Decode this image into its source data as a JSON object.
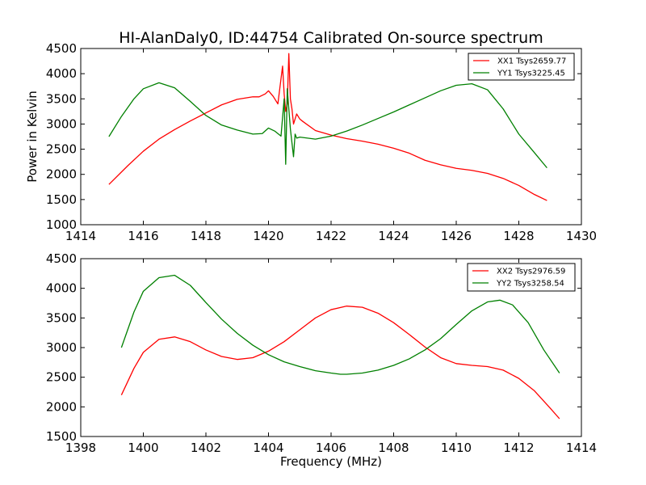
{
  "chart_data": [
    {
      "type": "line",
      "title": "HI-AlanDaly0, ID:44754 Calibrated On-source spectrum",
      "xlabel": "",
      "ylabel": "Power in Kelvin",
      "xlim": [
        1414,
        1430
      ],
      "ylim": [
        1000,
        4500
      ],
      "xticks": [
        1414,
        1416,
        1418,
        1420,
        1422,
        1424,
        1426,
        1428,
        1430
      ],
      "yticks": [
        1000,
        1500,
        2000,
        2500,
        3000,
        3500,
        4000,
        4500
      ],
      "grid": false,
      "legend_position": "top-right",
      "series": [
        {
          "name": "XX1 Tsys2659.77",
          "color": "#ff0000",
          "x": [
            1414.9,
            1415.5,
            1416.0,
            1416.5,
            1417.0,
            1417.5,
            1418.0,
            1418.5,
            1419.0,
            1419.5,
            1419.7,
            1419.9,
            1420.0,
            1420.15,
            1420.3,
            1420.45,
            1420.5,
            1420.55,
            1420.6,
            1420.65,
            1420.7,
            1420.75,
            1420.8,
            1420.9,
            1421.0,
            1421.1,
            1421.5,
            1422.0,
            1422.5,
            1423.0,
            1423.5,
            1424.0,
            1424.5,
            1425.0,
            1425.5,
            1426.0,
            1426.5,
            1427.0,
            1427.5,
            1428.0,
            1428.5,
            1428.9
          ],
          "y": [
            1800,
            2170,
            2460,
            2700,
            2890,
            3060,
            3220,
            3380,
            3490,
            3540,
            3540,
            3600,
            3660,
            3550,
            3400,
            4150,
            3600,
            3250,
            3400,
            4400,
            3500,
            3300,
            3000,
            3200,
            3100,
            3050,
            2870,
            2780,
            2710,
            2660,
            2600,
            2520,
            2420,
            2280,
            2190,
            2120,
            2080,
            2020,
            1920,
            1780,
            1600,
            1480
          ]
        },
        {
          "name": "YY1 Tsys3225.45",
          "color": "#008000",
          "x": [
            1414.9,
            1415.3,
            1415.7,
            1416.0,
            1416.5,
            1417.0,
            1417.5,
            1418.0,
            1418.5,
            1419.0,
            1419.5,
            1419.8,
            1420.0,
            1420.2,
            1420.4,
            1420.5,
            1420.55,
            1420.6,
            1420.7,
            1420.8,
            1420.85,
            1420.9,
            1421.0,
            1421.5,
            1422.0,
            1422.5,
            1423.0,
            1423.5,
            1424.0,
            1424.5,
            1425.0,
            1425.5,
            1426.0,
            1426.5,
            1427.0,
            1427.5,
            1428.0,
            1428.5,
            1428.9
          ],
          "y": [
            2750,
            3150,
            3500,
            3700,
            3820,
            3720,
            3450,
            3170,
            2980,
            2880,
            2800,
            2810,
            2920,
            2860,
            2760,
            3500,
            2200,
            3700,
            2900,
            2350,
            2800,
            2720,
            2740,
            2700,
            2760,
            2860,
            2980,
            3110,
            3240,
            3380,
            3520,
            3660,
            3770,
            3800,
            3680,
            3300,
            2800,
            2430,
            2130
          ]
        }
      ]
    },
    {
      "type": "line",
      "title": "",
      "xlabel": "Frequency (MHz)",
      "ylabel": "",
      "xlim": [
        1398,
        1414
      ],
      "ylim": [
        1500,
        4500
      ],
      "xticks": [
        1398,
        1400,
        1402,
        1404,
        1406,
        1408,
        1410,
        1412,
        1414
      ],
      "yticks": [
        1500,
        2000,
        2500,
        3000,
        3500,
        4000,
        4500
      ],
      "grid": false,
      "legend_position": "top-right",
      "series": [
        {
          "name": "XX2 Tsys2976.59",
          "color": "#ff0000",
          "x": [
            1399.3,
            1399.7,
            1400.0,
            1400.5,
            1401.0,
            1401.5,
            1402.0,
            1402.5,
            1403.0,
            1403.5,
            1404.0,
            1404.5,
            1405.0,
            1405.5,
            1406.0,
            1406.5,
            1407.0,
            1407.5,
            1408.0,
            1408.5,
            1409.0,
            1409.5,
            1410.0,
            1410.5,
            1411.0,
            1411.5,
            1412.0,
            1412.5,
            1413.0,
            1413.3
          ],
          "y": [
            2200,
            2650,
            2920,
            3140,
            3180,
            3100,
            2960,
            2850,
            2800,
            2830,
            2940,
            3100,
            3300,
            3500,
            3640,
            3700,
            3680,
            3580,
            3420,
            3220,
            3010,
            2830,
            2730,
            2700,
            2680,
            2620,
            2480,
            2270,
            1980,
            1800
          ]
        },
        {
          "name": "YY2 Tsys3258.54",
          "color": "#008000",
          "x": [
            1399.3,
            1399.7,
            1400.0,
            1400.5,
            1401.0,
            1401.5,
            1402.0,
            1402.5,
            1403.0,
            1403.5,
            1404.0,
            1404.5,
            1405.0,
            1405.5,
            1406.0,
            1406.3,
            1406.5,
            1407.0,
            1407.5,
            1408.0,
            1408.5,
            1409.0,
            1409.5,
            1410.0,
            1410.5,
            1411.0,
            1411.4,
            1411.8,
            1412.3,
            1412.8,
            1413.3
          ],
          "y": [
            3000,
            3600,
            3950,
            4180,
            4220,
            4050,
            3760,
            3480,
            3240,
            3040,
            2880,
            2760,
            2680,
            2610,
            2570,
            2550,
            2550,
            2570,
            2620,
            2700,
            2810,
            2960,
            3150,
            3390,
            3620,
            3770,
            3800,
            3720,
            3420,
            2960,
            2570
          ]
        }
      ]
    }
  ]
}
